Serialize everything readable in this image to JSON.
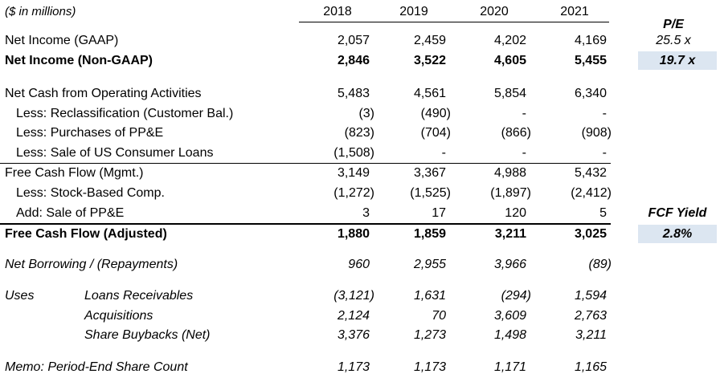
{
  "header": {
    "units": "($ in millions)",
    "years": [
      "2018",
      "2019",
      "2020",
      "2021"
    ],
    "pe_label": "P/E"
  },
  "rows": [
    {
      "label": "Net Income (GAAP)",
      "values": [
        "2,057",
        "2,459",
        "4,202",
        "4,169"
      ],
      "side": "25.5 x"
    },
    {
      "label": "Net Income (Non-GAAP)",
      "values": [
        "2,846",
        "3,522",
        "4,605",
        "5,455"
      ],
      "side": "19.7 x"
    },
    {
      "label": "Net Cash from Operating Activities",
      "values": [
        "5,483",
        "4,561",
        "5,854",
        "6,340"
      ]
    },
    {
      "label": "Less: Reclassification (Customer Bal.)",
      "values": [
        "(3)",
        "(490)",
        "-",
        "-"
      ]
    },
    {
      "label": "Less: Purchases of PP&E",
      "values": [
        "(823)",
        "(704)",
        "(866)",
        "(908)"
      ]
    },
    {
      "label": "Less: Sale of US Consumer Loans",
      "values": [
        "(1,508)",
        "-",
        "-",
        "-"
      ]
    },
    {
      "label": "Free Cash Flow (Mgmt.)",
      "values": [
        "3,149",
        "3,367",
        "4,988",
        "5,432"
      ]
    },
    {
      "label": "Less: Stock-Based Comp.",
      "values": [
        "(1,272)",
        "(1,525)",
        "(1,897)",
        "(2,412)"
      ]
    },
    {
      "label": "Add: Sale of PP&E",
      "values": [
        "3",
        "17",
        "120",
        "5"
      ],
      "side": "FCF Yield"
    },
    {
      "label": "Free Cash Flow (Adjusted)",
      "values": [
        "1,880",
        "1,859",
        "3,211",
        "3,025"
      ],
      "side": "2.8%"
    },
    {
      "label": "Net Borrowing / (Repayments)",
      "values": [
        "960",
        "2,955",
        "3,966",
        "(89)"
      ]
    },
    {
      "label": "Uses",
      "sublabel": "Loans Receivables",
      "values": [
        "(3,121)",
        "1,631",
        "(294)",
        "1,594"
      ]
    },
    {
      "sublabel": "Acquisitions",
      "values": [
        "2,124",
        "70",
        "3,609",
        "2,763"
      ]
    },
    {
      "sublabel": "Share Buybacks (Net)",
      "values": [
        "3,376",
        "1,273",
        "1,498",
        "3,211"
      ]
    },
    {
      "label": "Memo: Period-End Share Count",
      "values": [
        "1,173",
        "1,173",
        "1,171",
        "1,165"
      ]
    }
  ],
  "colors": {
    "highlight": "#dce6f1"
  }
}
